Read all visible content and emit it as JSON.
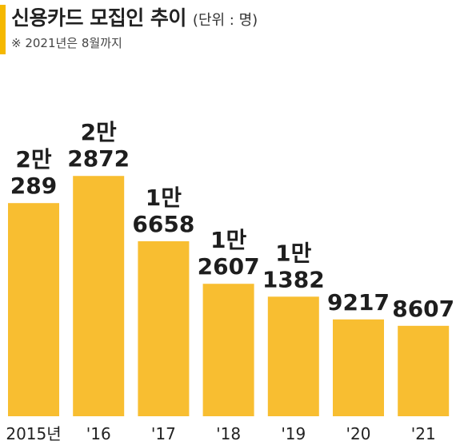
{
  "header": {
    "title": "신용카드 모집인 추이",
    "unit": "(단위 : 명)",
    "note": "※ 2021년은 8월까지"
  },
  "colors": {
    "bar": "#F8BE31",
    "accent": "#F5B800",
    "text": "#1E1E1E"
  },
  "chart_data": {
    "type": "bar",
    "title": "신용카드 모집인 추이",
    "unit": "명",
    "categories": [
      "2015년",
      "'16",
      "'17",
      "'18",
      "'19",
      "'20",
      "'21"
    ],
    "values": [
      20289,
      22872,
      16658,
      12607,
      11382,
      9217,
      8607
    ],
    "data_labels": [
      [
        "2만",
        "289"
      ],
      [
        "2만",
        "2872"
      ],
      [
        "1만",
        "6658"
      ],
      [
        "1만",
        "2607"
      ],
      [
        "1만",
        "1382"
      ],
      [
        "9217"
      ],
      [
        "8607"
      ]
    ],
    "ylim": [
      0,
      25000
    ],
    "grid": false,
    "legend": "none"
  }
}
